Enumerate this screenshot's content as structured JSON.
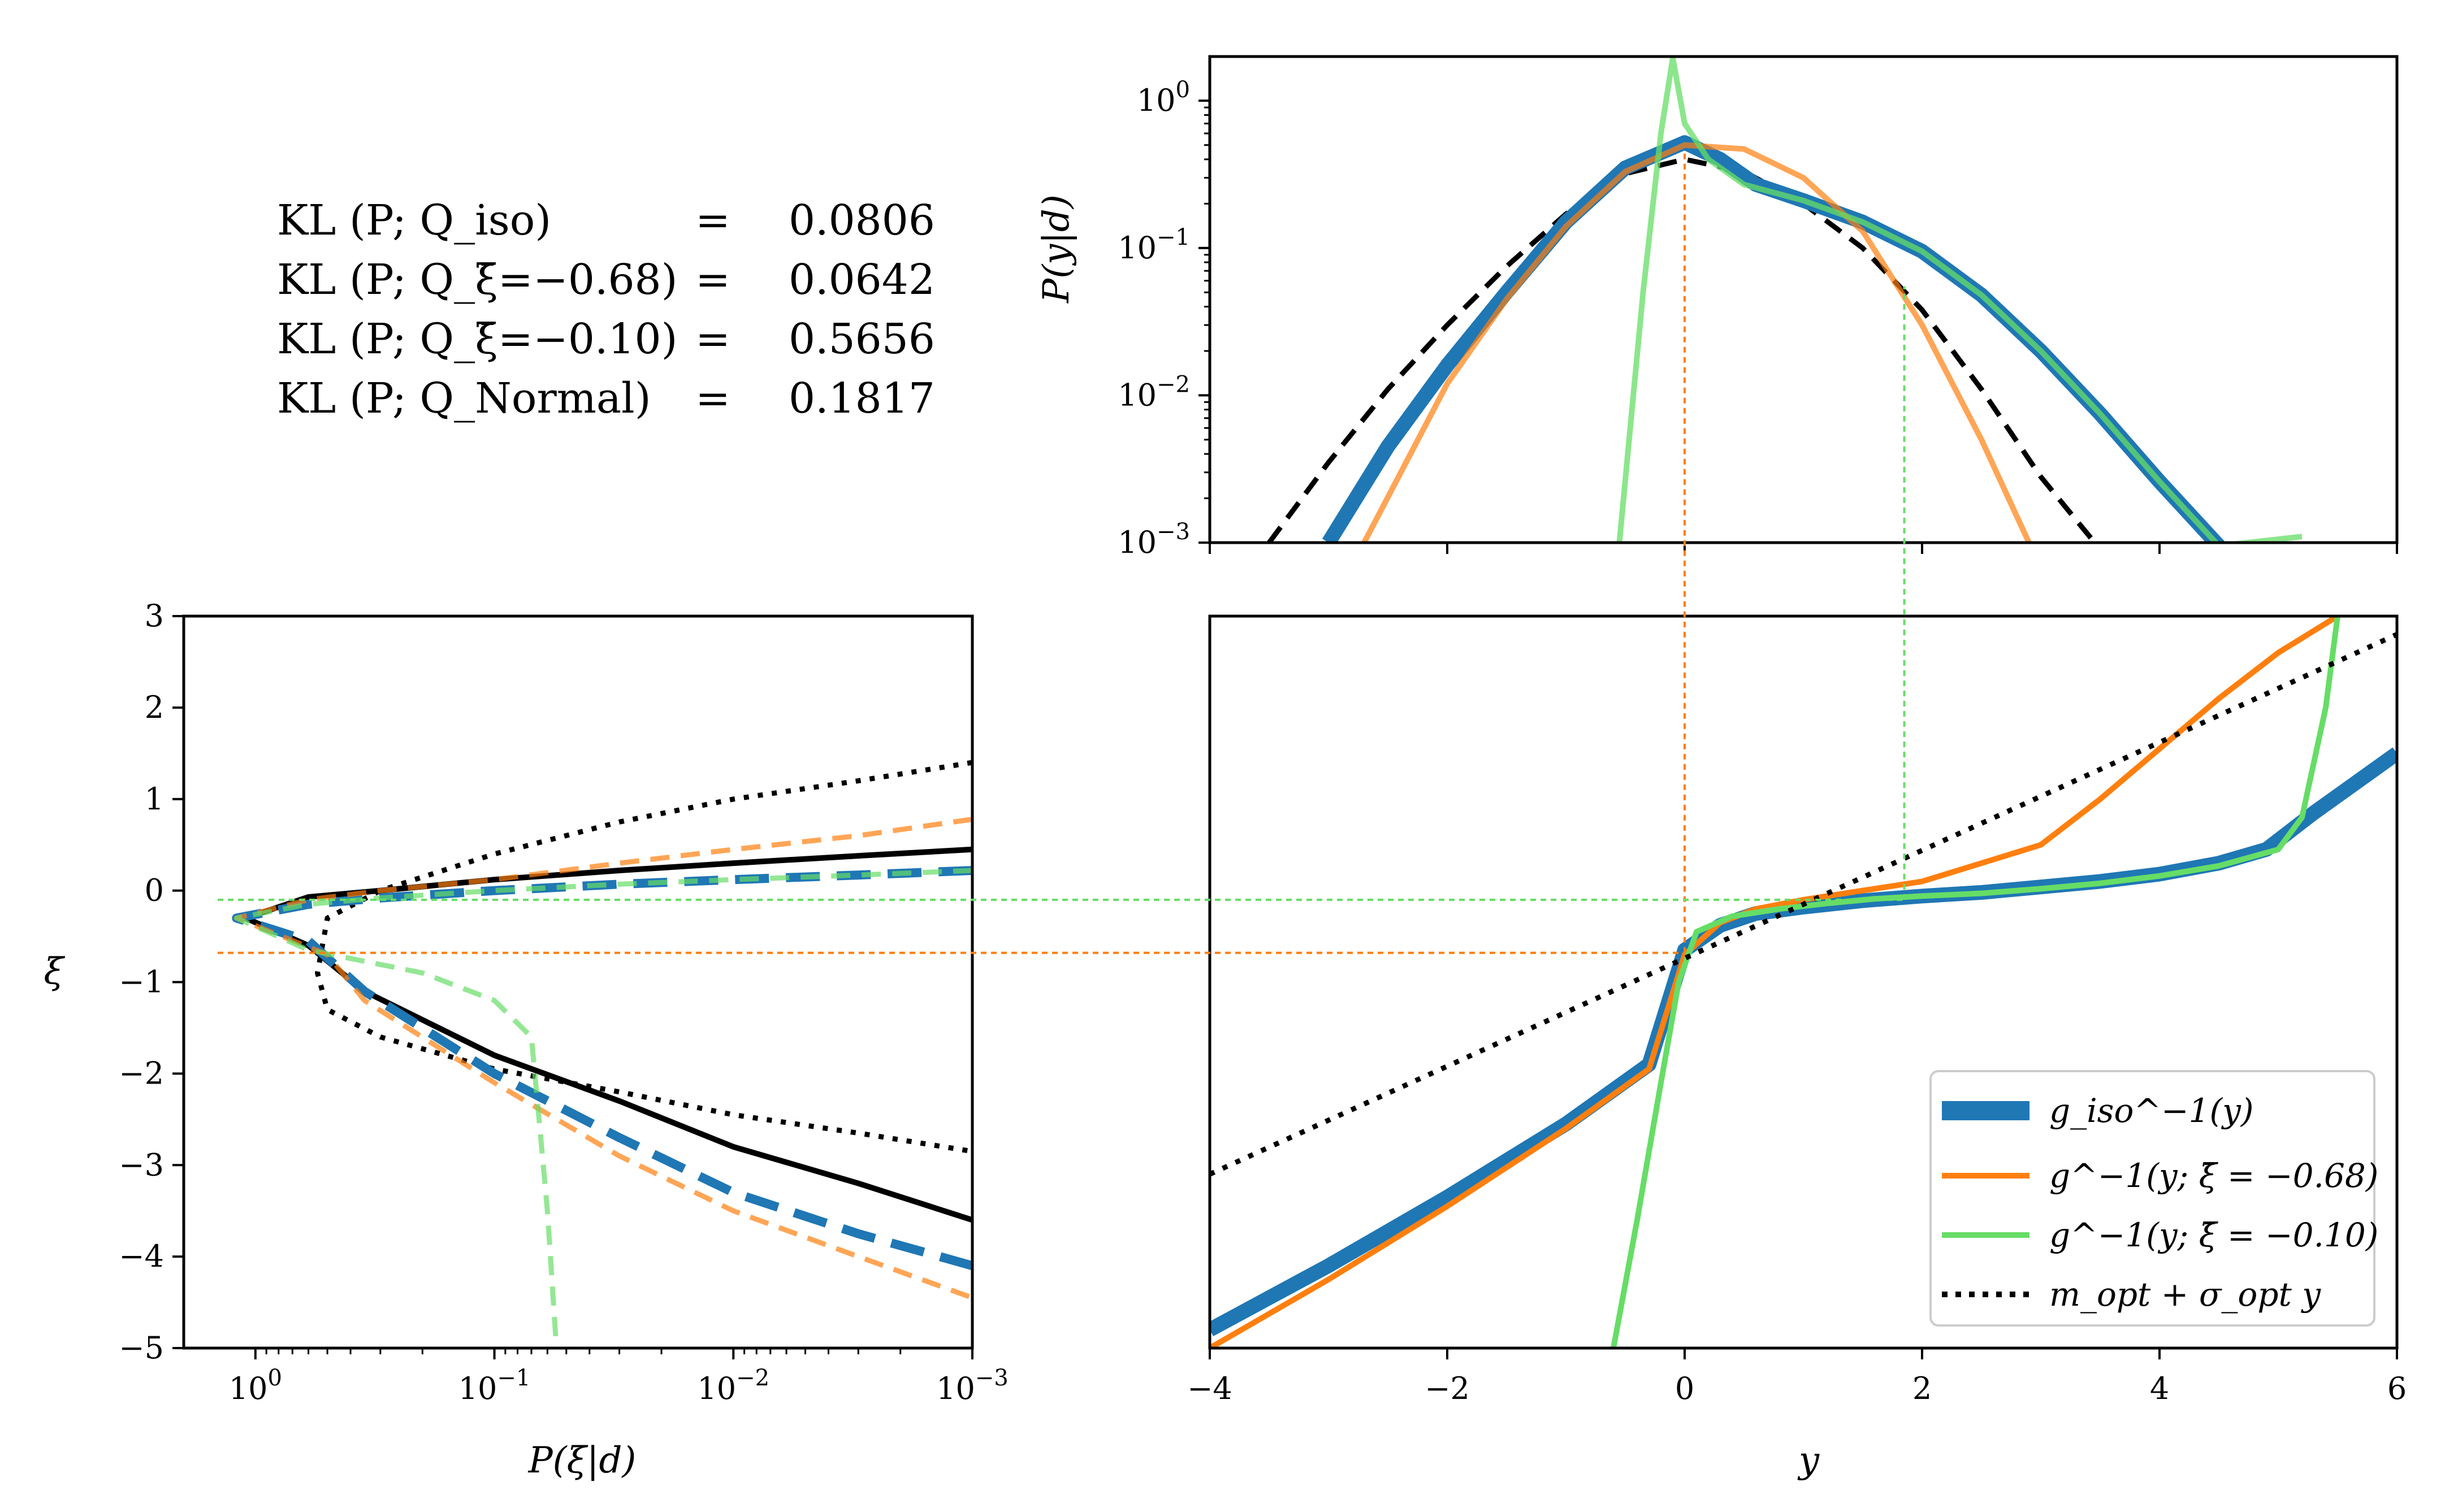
{
  "colors": {
    "iso": "#1f77b4",
    "neg068": "#ff7f0e",
    "neg010": "#66dd66",
    "normal": "#000000"
  },
  "kl_table": [
    {
      "label": "KL (P; Q_iso)",
      "eq": "=",
      "value": "0.0806"
    },
    {
      "label": "KL (P; Q_ξ̄=−0.68)",
      "eq": "=",
      "value": "0.0642"
    },
    {
      "label": "KL (P; Q_ξ̄=−0.10)",
      "eq": "=",
      "value": "0.5656"
    },
    {
      "label": "KL (P; Q_Normal)",
      "eq": "=",
      "value": "0.1817"
    }
  ],
  "legend": [
    {
      "label": "g_iso^−1(y)",
      "color": "#1f77b4",
      "style": "solid-thick"
    },
    {
      "label": "g^−1(y; ξ̄ = −0.68)",
      "color": "#ff7f0e",
      "style": "solid"
    },
    {
      "label": "g^−1(y; ξ̄ = −0.10)",
      "color": "#66dd66",
      "style": "solid"
    },
    {
      "label": "m_opt + σ_opt y",
      "color": "#000000",
      "style": "dotted"
    }
  ],
  "chart_data": [
    {
      "id": "top",
      "type": "line",
      "xlabel": "",
      "ylabel": "P(y|d)",
      "xlim": [
        -4,
        6
      ],
      "ylim_log10": [
        -3,
        0.3
      ],
      "y_scale": "log",
      "yticks": [
        {
          "value": 1,
          "label": "10^0"
        },
        {
          "value": 0.1,
          "label": "10^-1"
        },
        {
          "value": 0.01,
          "label": "10^-2"
        },
        {
          "value": 0.001,
          "label": "10^-3"
        }
      ],
      "series": [
        {
          "key": "normal",
          "style": "dashed",
          "x": [
            -3.5,
            -3,
            -2.5,
            -2,
            -1.5,
            -1,
            -0.5,
            0,
            0.5,
            1,
            1.5,
            2,
            2.5,
            3,
            3.5
          ],
          "y": [
            0.001,
            0.0035,
            0.011,
            0.03,
            0.075,
            0.17,
            0.32,
            0.4,
            0.33,
            0.2,
            0.1,
            0.038,
            0.011,
            0.0028,
            0.0009
          ]
        },
        {
          "key": "iso",
          "style": "solid-thick",
          "x": [
            -3,
            -2.5,
            -2,
            -1.5,
            -1,
            -0.5,
            0,
            0.3,
            0.6,
            1,
            1.5,
            2,
            2.5,
            3,
            3.5,
            4,
            4.5
          ],
          "y": [
            0.001,
            0.0045,
            0.016,
            0.05,
            0.15,
            0.35,
            0.52,
            0.4,
            0.27,
            0.21,
            0.15,
            0.095,
            0.048,
            0.02,
            0.0075,
            0.0026,
            0.00095
          ]
        },
        {
          "key": "neg068",
          "style": "solid",
          "x": [
            -2.7,
            -2,
            -1.5,
            -1,
            -0.5,
            0,
            0.5,
            1,
            1.5,
            2,
            2.5,
            2.9
          ],
          "y": [
            0.001,
            0.012,
            0.045,
            0.14,
            0.33,
            0.5,
            0.47,
            0.3,
            0.13,
            0.03,
            0.005,
            0.001
          ]
        },
        {
          "key": "neg010",
          "style": "solid",
          "x": [
            -0.55,
            -0.35,
            -0.2,
            -0.1,
            0,
            0.2,
            0.5,
            1,
            1.5,
            2,
            2.5,
            3,
            3.5,
            4,
            4.5,
            5.2
          ],
          "y": [
            0.001,
            0.05,
            0.6,
            1.95,
            0.7,
            0.4,
            0.27,
            0.21,
            0.15,
            0.095,
            0.048,
            0.02,
            0.0075,
            0.0026,
            0.00095,
            0.0011
          ]
        }
      ]
    },
    {
      "id": "left",
      "type": "line",
      "xlabel": "P(ξ|d)",
      "ylabel": "ξ",
      "x_scale": "log-reversed",
      "xlim_log10": [
        0.3,
        -3
      ],
      "ylim": [
        -5,
        3
      ],
      "xticks": [
        {
          "value": 1,
          "label": "10^0"
        },
        {
          "value": 0.1,
          "label": "10^-1"
        },
        {
          "value": 0.01,
          "label": "10^-2"
        },
        {
          "value": 0.001,
          "label": "10^-3"
        }
      ],
      "yticks": [
        3,
        2,
        1,
        0,
        -1,
        -2,
        -3,
        -4,
        -5
      ],
      "series": [
        {
          "key": "normal",
          "style": "solid",
          "x": [
            0.001,
            0.003,
            0.01,
            0.03,
            0.1,
            0.3,
            0.6,
            1.1,
            0.6,
            0.35,
            0.1,
            0.03,
            0.01,
            0.003,
            0.001
          ],
          "y": [
            0.45,
            0.38,
            0.3,
            0.22,
            0.12,
            0.0,
            -0.07,
            -0.3,
            -0.6,
            -1.1,
            -1.8,
            -2.3,
            -2.8,
            -3.2,
            -3.6
          ]
        },
        {
          "key": "normal",
          "style": "dotted",
          "x": [
            0.001,
            0.003,
            0.01,
            0.03,
            0.1,
            0.3,
            0.5,
            0.55,
            0.5,
            0.3,
            0.1,
            0.03,
            0.01,
            0.003,
            0.001
          ],
          "y": [
            1.4,
            1.2,
            1.0,
            0.75,
            0.4,
            0.0,
            -0.3,
            -0.9,
            -1.3,
            -1.6,
            -1.95,
            -2.2,
            -2.45,
            -2.65,
            -2.85
          ]
        },
        {
          "key": "iso",
          "style": "dashed-thick",
          "x": [
            0.001,
            0.003,
            0.01,
            0.03,
            0.1,
            0.3,
            0.6,
            1.2,
            0.6,
            0.35,
            0.1,
            0.03,
            0.01,
            0.003,
            0.001
          ],
          "y": [
            0.22,
            0.17,
            0.12,
            0.07,
            0.0,
            -0.08,
            -0.15,
            -0.3,
            -0.55,
            -1.1,
            -2.0,
            -2.7,
            -3.3,
            -3.75,
            -4.1
          ]
        },
        {
          "key": "neg068",
          "style": "dashed",
          "x": [
            0.001,
            0.003,
            0.01,
            0.03,
            0.1,
            0.3,
            0.6,
            1.2,
            0.5,
            0.35,
            0.1,
            0.03,
            0.01,
            0.003,
            0.001
          ],
          "y": [
            0.78,
            0.6,
            0.45,
            0.3,
            0.12,
            0.0,
            -0.1,
            -0.3,
            -0.7,
            -1.2,
            -2.1,
            -2.9,
            -3.5,
            -4.0,
            -4.45
          ]
        },
        {
          "key": "neg010",
          "style": "dashed",
          "x": [
            0.001,
            0.003,
            0.01,
            0.03,
            0.1,
            0.3,
            0.6,
            1.2,
            0.6,
            0.2,
            0.1,
            0.07,
            0.065,
            0.06,
            0.055
          ],
          "y": [
            0.22,
            0.17,
            0.12,
            0.07,
            0.0,
            -0.08,
            -0.15,
            -0.3,
            -0.65,
            -0.9,
            -1.2,
            -1.6,
            -2.5,
            -3.5,
            -5.0
          ]
        }
      ]
    },
    {
      "id": "right",
      "type": "line",
      "xlabel": "y",
      "ylabel": "",
      "xlim": [
        -4,
        6
      ],
      "ylim": [
        -5,
        3
      ],
      "xticks": [
        -4,
        -2,
        0,
        2,
        4,
        6
      ],
      "series": [
        {
          "key": "iso",
          "style": "solid-thick",
          "x": [
            -4,
            -3,
            -2,
            -1,
            -0.3,
            0,
            0.3,
            0.6,
            1,
            1.5,
            2,
            2.5,
            3,
            3.5,
            4,
            4.5,
            4.9,
            5.1,
            5.3,
            6
          ],
          "y": [
            -4.8,
            -4.1,
            -3.35,
            -2.55,
            -1.9,
            -0.65,
            -0.38,
            -0.25,
            -0.18,
            -0.11,
            -0.06,
            -0.02,
            0.04,
            0.1,
            0.18,
            0.3,
            0.45,
            0.65,
            0.85,
            1.5
          ]
        },
        {
          "key": "neg068",
          "style": "solid",
          "x": [
            -4,
            -3,
            -2,
            -1,
            -0.3,
            0,
            0.3,
            0.6,
            1,
            1.5,
            2,
            2.5,
            3,
            3.5,
            4,
            4.5,
            5,
            5.5
          ],
          "y": [
            -5,
            -4.25,
            -3.45,
            -2.6,
            -1.95,
            -0.7,
            -0.35,
            -0.2,
            -0.1,
            0.0,
            0.1,
            0.3,
            0.5,
            1.0,
            1.55,
            2.1,
            2.6,
            3.0
          ]
        },
        {
          "key": "neg010",
          "style": "solid",
          "x": [
            -0.6,
            -0.4,
            -0.2,
            -0.05,
            0.1,
            0.4,
            0.8,
            1.2,
            1.6,
            2,
            2.5,
            3,
            3.5,
            4,
            4.5,
            5,
            5.2,
            5.4,
            5.5
          ],
          "y": [
            -5,
            -3.6,
            -2.1,
            -1.0,
            -0.45,
            -0.28,
            -0.2,
            -0.14,
            -0.09,
            -0.06,
            -0.03,
            0.02,
            0.08,
            0.16,
            0.27,
            0.45,
            0.8,
            2.0,
            3.0
          ]
        },
        {
          "key": "normal",
          "style": "dotted",
          "x": [
            -4,
            6
          ],
          "y": [
            -3.1,
            2.8
          ]
        }
      ],
      "guides": [
        {
          "color": "#ff7f0e",
          "y_value": -0.68,
          "x_value": 0.0
        },
        {
          "color": "#66dd66",
          "y_value": -0.1,
          "x_value": 1.85
        }
      ]
    }
  ]
}
